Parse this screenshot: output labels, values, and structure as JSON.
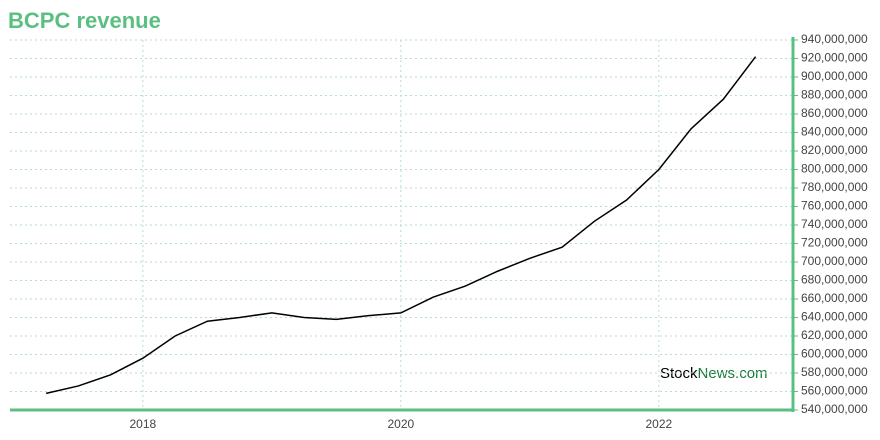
{
  "chart_data": {
    "type": "line",
    "title": "BCPC revenue",
    "title_color": "#5bbf82",
    "watermark": [
      "Stock",
      "News.com"
    ],
    "x": [
      2017.25,
      2017.5,
      2017.75,
      2018.0,
      2018.25,
      2018.5,
      2018.75,
      2019.0,
      2019.25,
      2019.5,
      2019.75,
      2020.0,
      2020.25,
      2020.5,
      2020.75,
      2021.0,
      2021.25,
      2021.5,
      2021.75,
      2022.0,
      2022.25,
      2022.5,
      2022.75
    ],
    "series": [
      {
        "name": "BCPC revenue",
        "color": "#000000",
        "values": [
          558000000,
          566000000,
          578000000,
          596000000,
          620000000,
          636000000,
          640000000,
          645000000,
          640000000,
          638000000,
          642000000,
          645000000,
          662000000,
          674000000,
          690000000,
          704000000,
          716000000,
          744000000,
          767000000,
          800000000,
          844000000,
          876000000,
          922000000
        ]
      }
    ],
    "xlim": [
      2016.97,
      2023.04
    ],
    "xticks": [
      2018,
      2020,
      2022
    ],
    "ylim": [
      540000000,
      940000000
    ],
    "yticks": [
      {
        "value": 540000000,
        "label": "540,000,000"
      },
      {
        "value": 560000000,
        "label": "560,000,000"
      },
      {
        "value": 580000000,
        "label": "580,000,000"
      },
      {
        "value": 600000000,
        "label": "600,000,000"
      },
      {
        "value": 620000000,
        "label": "620,000,000"
      },
      {
        "value": 640000000,
        "label": "640,000,000"
      },
      {
        "value": 660000000,
        "label": "660,000,000"
      },
      {
        "value": 680000000,
        "label": "680,000,000"
      },
      {
        "value": 700000000,
        "label": "700,000,000"
      },
      {
        "value": 720000000,
        "label": "720,000,000"
      },
      {
        "value": 740000000,
        "label": "740,000,000"
      },
      {
        "value": 760000000,
        "label": "760,000,000"
      },
      {
        "value": 780000000,
        "label": "780,000,000"
      },
      {
        "value": 800000000,
        "label": "800,000,000"
      },
      {
        "value": 820000000,
        "label": "820,000,000"
      },
      {
        "value": 840000000,
        "label": "840,000,000"
      },
      {
        "value": 860000000,
        "label": "860,000,000"
      },
      {
        "value": 880000000,
        "label": "880,000,000"
      },
      {
        "value": 900000000,
        "label": "900,000,000"
      },
      {
        "value": 920000000,
        "label": "920,000,000"
      },
      {
        "value": 940000000,
        "label": "940,000,000"
      }
    ],
    "y_axis_side": "right",
    "grid": true,
    "axis_color": "#5bbf82"
  }
}
